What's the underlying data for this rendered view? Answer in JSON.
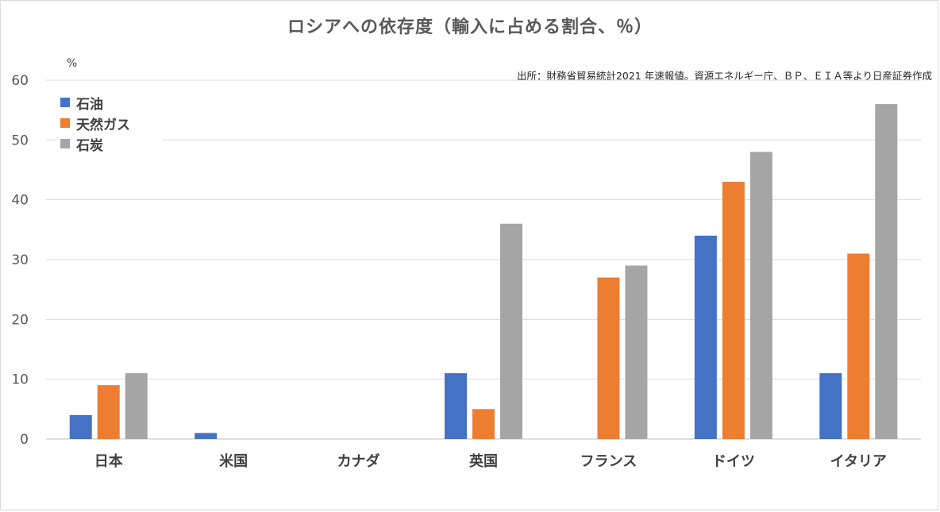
{
  "chart_data": {
    "type": "bar",
    "title": "ロシアへの依存度（輸入に占める割合、％）",
    "unit": "%",
    "source": "出所：財務省貿易統計2021 年速報値。資源エネルギー庁、ＢＰ、ＥＩＡ等より日産証券作成",
    "categories": [
      "日本",
      "米国",
      "カナダ",
      "英国",
      "フランス",
      "ドイツ",
      "イタリア"
    ],
    "series": [
      {
        "name": "石油",
        "values": [
          4,
          1,
          0,
          11,
          0,
          34,
          11
        ],
        "color": "#4472C4"
      },
      {
        "name": "天然ガス",
        "values": [
          9,
          0,
          0,
          5,
          27,
          43,
          31
        ],
        "color": "#ED7D31"
      },
      {
        "name": "石炭",
        "values": [
          11,
          0,
          0,
          36,
          29,
          48,
          56
        ],
        "color": "#A5A5A5"
      }
    ],
    "ylim": [
      0,
      60
    ],
    "yticks": [
      0,
      10,
      20,
      30,
      40,
      50,
      60
    ],
    "grid": true,
    "legend_position": "top-left"
  }
}
